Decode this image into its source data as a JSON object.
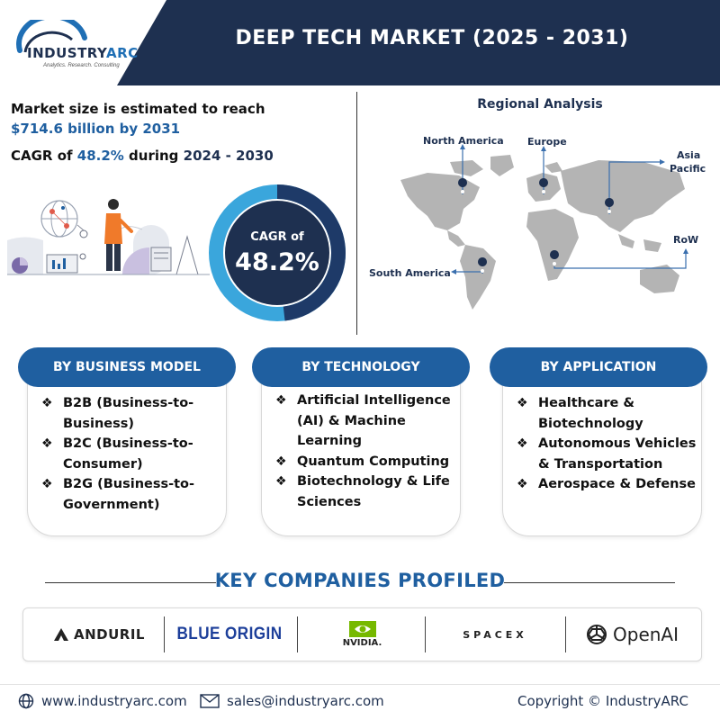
{
  "header": {
    "title": "DEEP TECH MARKET (2025 - 2031)",
    "logo_main": "INDUSTRY",
    "logo_accent": "ARC",
    "logo_tagline": "Analytics. Research. Consulting"
  },
  "market": {
    "size_line1": "Market size is estimated to reach",
    "size_line2": "$714.6 billion by 2031",
    "cagr_prefix": "CAGR of ",
    "cagr_value": "48.2%",
    "cagr_mid": " during ",
    "cagr_period": "2024 - 2030"
  },
  "donut": {
    "label": "CAGR of",
    "value": "48.2%",
    "fraction": 0.482,
    "colors": {
      "light": "#3aa6dc",
      "dark": "#1e3a68",
      "inner": "#1e3050"
    }
  },
  "regional": {
    "title": "Regional Analysis",
    "regions": {
      "north_america": "North America",
      "europe": "Europe",
      "asia_pacific_1": "Asia",
      "asia_pacific_2": "Pacific",
      "row": "RoW",
      "south_america": "South America"
    }
  },
  "segments": {
    "business_model": {
      "heading": "BY BUSINESS MODEL",
      "items": [
        [
          "B2B (Business-to-",
          "Business)"
        ],
        [
          "B2C (Business-to-",
          "Consumer)"
        ],
        [
          "B2G (Business-to-",
          "Government)"
        ]
      ]
    },
    "technology": {
      "heading": "BY TECHNOLOGY",
      "items": [
        [
          "Artificial Intelligence",
          "(AI) & Machine",
          "Learning"
        ],
        [
          "Quantum Computing"
        ],
        [
          "Biotechnology & Life",
          "Sciences"
        ]
      ]
    },
    "application": {
      "heading": "BY APPLICATION",
      "items": [
        [
          "Healthcare &",
          "Biotechnology"
        ],
        [
          "Autonomous Vehicles",
          "& Transportation"
        ],
        [
          "Aerospace & Defense"
        ]
      ]
    },
    "bullet": "❖"
  },
  "key_companies": {
    "title": "KEY COMPANIES PROFILED",
    "companies": [
      "ANDURIL",
      "BLUE ORIGIN",
      "NVIDIA.",
      "SPACEX",
      "OpenAI"
    ]
  },
  "footer": {
    "website": "www.industryarc.com",
    "email": "sales@industryarc.com",
    "copyright": "Copyright © IndustryARC"
  },
  "colors": {
    "navy": "#1e3050",
    "accent_blue": "#1f5fa0",
    "light_blue": "#3aa6dc",
    "map_gray": "#b4b4b4"
  }
}
